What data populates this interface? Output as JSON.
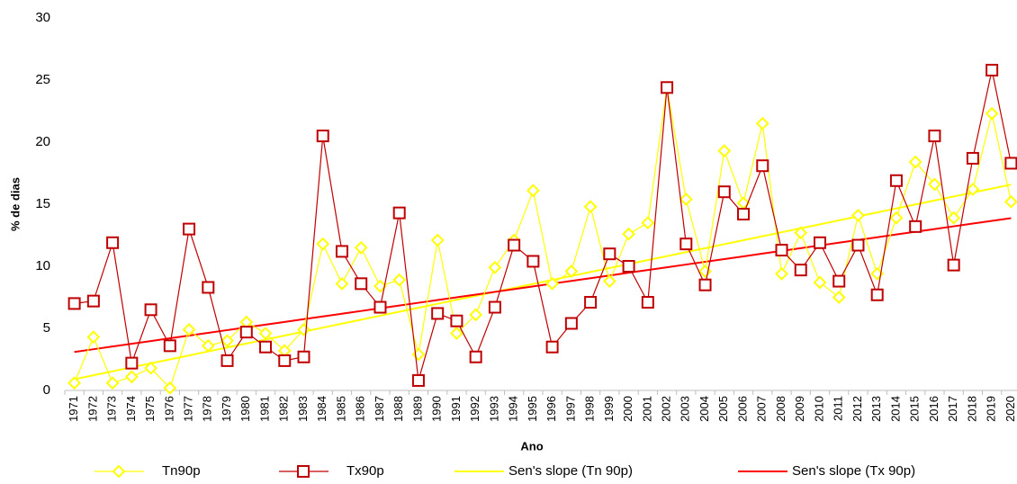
{
  "chart_data": {
    "type": "line",
    "x_label": "Ano",
    "y_label": "% de dias",
    "categories": [
      "1971",
      "1972",
      "1973",
      "1974",
      "1975",
      "1976",
      "1977",
      "1978",
      "1979",
      "1980",
      "1981",
      "1982",
      "1983",
      "1984",
      "1985",
      "1986",
      "1987",
      "1988",
      "1989",
      "1990",
      "1991",
      "1992",
      "1993",
      "1994",
      "1995",
      "1996",
      "1997",
      "1998",
      "1999",
      "2000",
      "2001",
      "2002",
      "2003",
      "2004",
      "2005",
      "2006",
      "2007",
      "2008",
      "2009",
      "2010",
      "2011",
      "2012",
      "2013",
      "2014",
      "2015",
      "2016",
      "2017",
      "2018",
      "2019",
      "2020"
    ],
    "ylim": [
      0,
      30
    ],
    "yticks": [
      0,
      5,
      10,
      15,
      20,
      25,
      30
    ],
    "grid": false,
    "legend": "bottom",
    "series": [
      {
        "name": "Tn90p",
        "color": "#ffff00",
        "marker": "diamond",
        "values": [
          0.6,
          4.3,
          0.6,
          1.1,
          1.8,
          0.2,
          4.9,
          3.6,
          4.0,
          5.5,
          4.6,
          3.2,
          4.9,
          11.8,
          8.6,
          11.5,
          8.4,
          8.9,
          2.9,
          12.1,
          4.6,
          6.1,
          9.9,
          12.1,
          16.1,
          8.6,
          9.6,
          14.8,
          8.8,
          12.6,
          13.5,
          24.4,
          15.4,
          9.6,
          19.3,
          15.1,
          21.5,
          9.4,
          12.7,
          8.7,
          7.5,
          14.1,
          9.4,
          13.9,
          18.4,
          16.6,
          13.9,
          16.2,
          22.3,
          15.2
        ]
      },
      {
        "name": "Tx90p",
        "color": "#c00000",
        "marker": "square",
        "values": [
          7.0,
          7.2,
          11.9,
          2.2,
          6.5,
          3.6,
          13.0,
          8.3,
          2.4,
          4.7,
          3.5,
          2.4,
          2.7,
          20.5,
          11.2,
          8.6,
          6.7,
          14.3,
          0.8,
          6.2,
          5.6,
          2.7,
          6.7,
          11.7,
          10.4,
          3.5,
          5.4,
          7.1,
          11.0,
          10.0,
          7.1,
          24.4,
          11.8,
          8.5,
          16.0,
          14.2,
          18.1,
          11.3,
          9.7,
          11.9,
          8.8,
          11.7,
          7.7,
          16.9,
          13.2,
          20.5,
          10.1,
          18.7,
          25.8,
          18.3
        ]
      },
      {
        "name": "Sen's slope (Tn 90p)",
        "color": "#ffff00",
        "marker": "none",
        "values": [
          0.9,
          1.22,
          1.54,
          1.86,
          2.18,
          2.5,
          2.82,
          3.14,
          3.46,
          3.78,
          4.1,
          4.42,
          4.74,
          5.06,
          5.38,
          5.7,
          6.02,
          6.34,
          6.66,
          6.98,
          7.3,
          7.62,
          7.94,
          8.26,
          8.58,
          8.9,
          9.22,
          9.54,
          9.86,
          10.18,
          10.5,
          10.82,
          11.14,
          11.46,
          11.78,
          12.1,
          12.42,
          12.74,
          13.06,
          13.38,
          13.7,
          14.02,
          14.34,
          14.66,
          14.98,
          15.3,
          15.62,
          15.94,
          16.26,
          16.58
        ]
      },
      {
        "name": "Sen's slope (Tx 90p)",
        "color": "#ff0000",
        "marker": "none",
        "values": [
          3.1,
          3.32,
          3.54,
          3.76,
          3.98,
          4.2,
          4.42,
          4.64,
          4.86,
          5.08,
          5.3,
          5.52,
          5.74,
          5.96,
          6.18,
          6.4,
          6.62,
          6.84,
          7.06,
          7.28,
          7.5,
          7.72,
          7.94,
          8.16,
          8.38,
          8.6,
          8.82,
          9.04,
          9.26,
          9.48,
          9.7,
          9.92,
          10.14,
          10.36,
          10.58,
          10.8,
          11.02,
          11.24,
          11.46,
          11.68,
          11.9,
          12.12,
          12.34,
          12.56,
          12.78,
          13.0,
          13.22,
          13.44,
          13.66,
          13.88
        ]
      }
    ]
  }
}
